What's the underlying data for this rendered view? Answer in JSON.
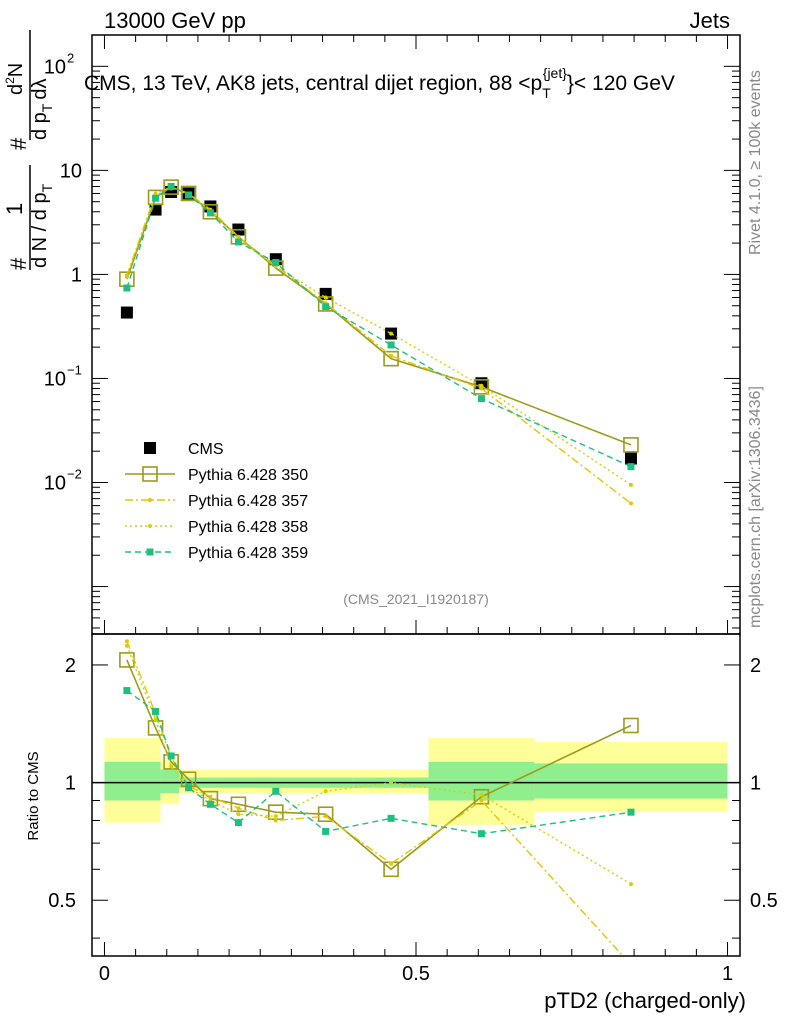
{
  "header": {
    "energy_label": "13000 GeV pp",
    "category_label": "Jets",
    "rivet_label": "Rivet 4.1.0, ≥ 100k events",
    "mcplots_label": "mcplots.cern.ch [arXiv:1306.3436]",
    "analysis_label": "(CMS_2021_I1920187)"
  },
  "main_title": {
    "prefix": "CMS, 13 TeV, AK8 jets, central dijet region, 88 <p",
    "sub": "T",
    "sup": "{jet}",
    "suffix": "}< 120 GeV"
  },
  "y_axis_main": {
    "prefix": "#",
    "one": "1",
    "dN": "d N / d p",
    "dN_sub": "T",
    "hash": "#",
    "d2N": "d",
    "d2N_exp": "2",
    "d2N_end": "N",
    "dpt": "d p",
    "dpt_sub": "T",
    "dlambda": "dλ",
    "ticks": [
      {
        "value": 100,
        "label": "10",
        "exp": "2"
      },
      {
        "value": 10,
        "label": "10",
        "exp": ""
      },
      {
        "value": 1,
        "label": "1",
        "exp": ""
      },
      {
        "value": 0.1,
        "label": "10",
        "exp": "−1"
      },
      {
        "value": 0.01,
        "label": "10",
        "exp": "−2"
      }
    ]
  },
  "ratio_axis": {
    "label": "Ratio to CMS",
    "ticks": [
      {
        "value": 2,
        "label": "2"
      },
      {
        "value": 1,
        "label": "1"
      },
      {
        "value": 0.5,
        "label": "0.5"
      }
    ]
  },
  "x_axis": {
    "label": "pTD2 (charged-only)",
    "ticks": [
      {
        "value": 0,
        "label": "0"
      },
      {
        "value": 0.5,
        "label": "0.5"
      },
      {
        "value": 1,
        "label": "1"
      }
    ]
  },
  "chart_data": [
    {
      "type": "scatter",
      "panel": "main",
      "yscale": "log",
      "xlim": [
        -0.02,
        1.02
      ],
      "ylim": [
        0.00035,
        200
      ],
      "x": [
        0.036,
        0.082,
        0.107,
        0.135,
        0.17,
        0.215,
        0.275,
        0.355,
        0.46,
        0.605,
        0.845
      ],
      "series": [
        {
          "name": "CMS",
          "color": "#000000",
          "style": "square-filled",
          "values": [
            0.43,
            4.2,
            6.2,
            6.0,
            4.5,
            2.7,
            1.4,
            0.65,
            0.27,
            0.09,
            0.017
          ]
        },
        {
          "name": "Pythia 6.428 350",
          "color": "#9b9b1c",
          "style": "square-open-solid",
          "values": [
            0.9,
            5.5,
            6.9,
            6.0,
            4.0,
            2.3,
            1.15,
            0.52,
            0.155,
            0.083,
            0.023
          ]
        },
        {
          "name": "Pythia 6.428 357",
          "color": "#e6c400",
          "style": "dashdot",
          "values": [
            0.98,
            6.0,
            6.9,
            6.0,
            4.2,
            2.3,
            1.2,
            0.53,
            0.165,
            0.08,
            0.0063
          ]
        },
        {
          "name": "Pythia 6.428 358",
          "color": "#d2d200",
          "style": "dotted",
          "values": [
            0.95,
            5.8,
            6.7,
            5.9,
            4.1,
            2.2,
            1.2,
            0.6,
            0.27,
            0.085,
            0.0095
          ]
        },
        {
          "name": "Pythia 6.428 359",
          "color": "#1fbf7f",
          "style": "dashed-square",
          "values": [
            0.74,
            5.4,
            7.0,
            5.8,
            3.9,
            2.05,
            1.3,
            0.49,
            0.21,
            0.064,
            0.0142
          ]
        }
      ]
    },
    {
      "type": "scatter",
      "panel": "ratio",
      "ylabel": "Ratio to CMS",
      "yscale": "log",
      "xlim": [
        -0.02,
        1.02
      ],
      "ylim": [
        0.36,
        2.4
      ],
      "bands": [
        {
          "x0": 0.0,
          "x1": 0.09,
          "inner": [
            0.9,
            1.13
          ],
          "outer": [
            0.79,
            1.3
          ]
        },
        {
          "x0": 0.09,
          "x1": 0.12,
          "inner": [
            0.94,
            1.08
          ],
          "outer": [
            0.88,
            1.14
          ]
        },
        {
          "x0": 0.12,
          "x1": 0.4,
          "inner": [
            0.97,
            1.03
          ],
          "outer": [
            0.94,
            1.08
          ]
        },
        {
          "x0": 0.4,
          "x1": 0.52,
          "inner": [
            0.97,
            1.03
          ],
          "outer": [
            0.94,
            1.08
          ]
        },
        {
          "x0": 0.52,
          "x1": 0.69,
          "inner": [
            0.9,
            1.13
          ],
          "outer": [
            0.78,
            1.3
          ]
        },
        {
          "x0": 0.69,
          "x1": 1.0,
          "inner": [
            0.91,
            1.12
          ],
          "outer": [
            0.84,
            1.27
          ]
        }
      ],
      "x": [
        0.036,
        0.082,
        0.107,
        0.135,
        0.17,
        0.215,
        0.275,
        0.355,
        0.46,
        0.605,
        0.845
      ],
      "series": [
        {
          "name": "Pythia 6.428 350",
          "values": [
            2.06,
            1.38,
            1.13,
            1.02,
            0.91,
            0.88,
            0.84,
            0.83,
            0.6,
            0.92,
            1.4
          ]
        },
        {
          "name": "Pythia 6.428 357",
          "values": [
            2.3,
            1.5,
            1.16,
            0.98,
            0.92,
            0.86,
            0.8,
            0.82,
            0.62,
            0.9,
            0.33
          ]
        },
        {
          "name": "Pythia 6.428 358",
          "values": [
            2.24,
            1.45,
            1.1,
            0.97,
            0.9,
            0.83,
            0.82,
            0.95,
            1.0,
            0.93,
            0.55
          ]
        },
        {
          "name": "Pythia 6.428 359",
          "values": [
            1.72,
            1.52,
            1.17,
            0.97,
            0.88,
            0.79,
            0.95,
            0.75,
            0.81,
            0.74,
            0.84
          ]
        }
      ]
    }
  ],
  "colors": {
    "cms": "#000000",
    "py350": "#9b9b1c",
    "py357": "#e6c400",
    "py358": "#d2d200",
    "py359": "#1fbf7f",
    "band_inner": "#8fef8f",
    "band_outer": "#ffff99"
  }
}
